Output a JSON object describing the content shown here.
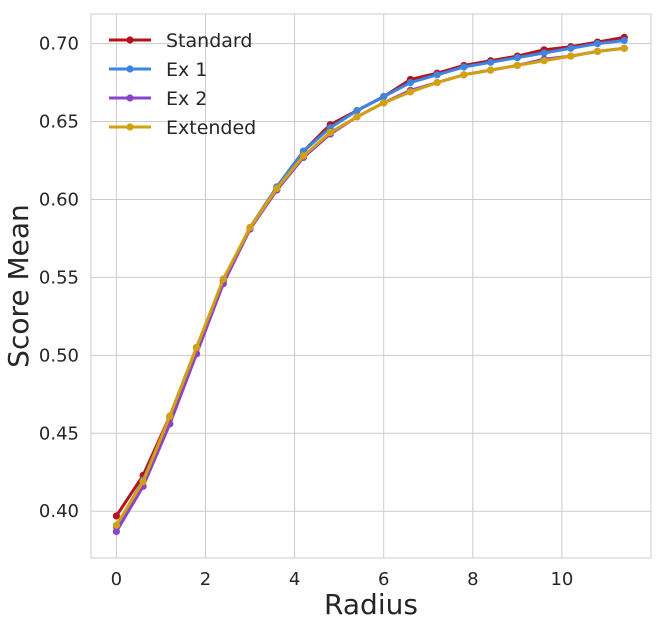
{
  "chart_data": {
    "type": "line",
    "title": "",
    "xlabel": "Radius",
    "ylabel": "Score Mean",
    "xlim": [
      -0.57,
      12.0
    ],
    "ylim": [
      0.37,
      0.719
    ],
    "xticks": [
      0,
      2,
      4,
      6,
      8,
      10
    ],
    "xtick_labels": [
      "0",
      "2",
      "4",
      "6",
      "8",
      "10"
    ],
    "yticks": [
      0.4,
      0.45,
      0.5,
      0.55,
      0.6,
      0.65,
      0.7
    ],
    "ytick_labels": [
      "0.40",
      "0.45",
      "0.50",
      "0.55",
      "0.60",
      "0.65",
      "0.70"
    ],
    "grid": true,
    "legend_position": "top-left",
    "x": [
      0,
      0.6,
      1.2,
      1.8,
      2.4,
      3.0,
      3.6,
      4.2,
      4.8,
      5.4,
      6.0,
      6.6,
      7.2,
      7.8,
      8.4,
      9.0,
      9.6,
      10.2,
      10.8,
      11.4
    ],
    "series": [
      {
        "name": "Standard",
        "color": "#b5121b",
        "values": [
          0.397,
          0.423,
          0.461,
          0.505,
          0.548,
          0.582,
          0.608,
          0.631,
          0.648,
          0.657,
          0.666,
          0.677,
          0.681,
          0.686,
          0.689,
          0.692,
          0.696,
          0.698,
          0.701,
          0.704
        ]
      },
      {
        "name": "Ex 1",
        "color": "#3d85e0",
        "values": [
          0.39,
          0.42,
          0.46,
          0.505,
          0.548,
          0.582,
          0.608,
          0.631,
          0.646,
          0.657,
          0.666,
          0.675,
          0.68,
          0.685,
          0.688,
          0.691,
          0.694,
          0.697,
          0.7,
          0.702
        ]
      },
      {
        "name": "Ex 2",
        "color": "#8a44c9",
        "values": [
          0.387,
          0.416,
          0.456,
          0.501,
          0.546,
          0.581,
          0.606,
          0.627,
          0.642,
          0.653,
          0.662,
          0.67,
          0.675,
          0.68,
          0.683,
          0.686,
          0.69,
          0.692,
          0.695,
          0.697
        ]
      },
      {
        "name": "Extended",
        "color": "#d4a10e",
        "values": [
          0.391,
          0.419,
          0.461,
          0.505,
          0.549,
          0.582,
          0.607,
          0.628,
          0.643,
          0.653,
          0.662,
          0.669,
          0.675,
          0.68,
          0.683,
          0.686,
          0.689,
          0.692,
          0.695,
          0.697
        ]
      }
    ]
  }
}
